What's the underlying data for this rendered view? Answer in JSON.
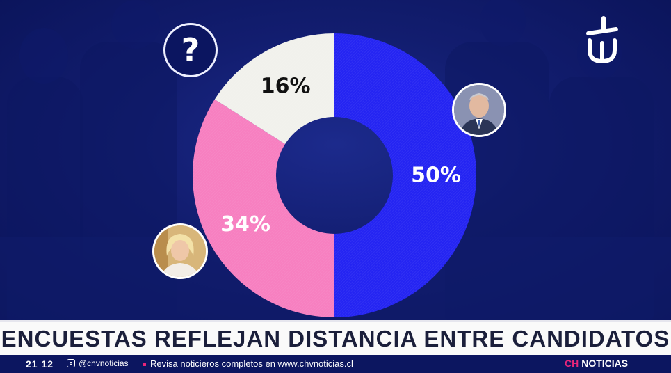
{
  "chart_data": {
    "type": "pie",
    "style": "donut",
    "slices": [
      {
        "label": "50%",
        "value": 50,
        "color": "#2424f2",
        "label_color": "#ffffff"
      },
      {
        "label": "34%",
        "value": 34,
        "color": "#f77fc0",
        "label_color": "#ffffff"
      },
      {
        "label": "16%",
        "value": 16,
        "color": "#f1f1ec",
        "label_color": "#111111"
      }
    ]
  },
  "badges": {
    "unknown_symbol": "?"
  },
  "headline": "ENCUESTAS REFLEJAN DISTANCIA ENTRE CANDIDATOS",
  "ticker": {
    "time": "21 12",
    "instagram_handle": "@chvnoticias",
    "message": "Revisa noticieros completos en www.chvnoticias.cl",
    "brand_prefix": "CH",
    "brand_name": "NOTICIAS"
  },
  "colors": {
    "background": "#121d6f",
    "accent": "#e8267a"
  }
}
